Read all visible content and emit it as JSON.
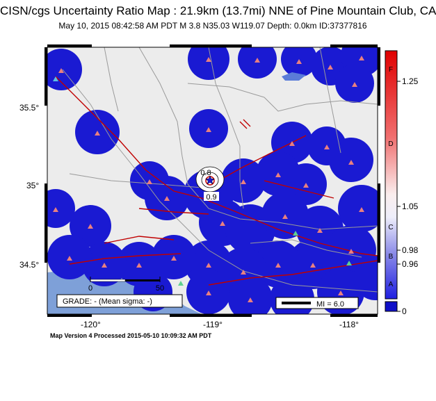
{
  "title": "CISN/cgs Uncertainty Ratio Map : 21.9km (13.7mi) NNE of Pine Mountain Club, CA",
  "subtitle": "May 10, 2015 08:42:58 AM PDT   M 3.8   N35.03 W119.07   Depth: 0.0km   ID:37377816",
  "footer": "Map Version 4 Processed 2015-05-10 10:09:32 AM PDT",
  "grade_box": "GRADE: - (Mean sigma: -)",
  "mi_box": "MI = 6.0",
  "scalebar": {
    "left": "0",
    "right": "50"
  },
  "contour_labels": [
    "0.8",
    "0.9"
  ],
  "lat_labels": [
    "35.5°",
    "35°",
    "34.5°"
  ],
  "lon_labels": [
    "-120°",
    "-119°",
    "-118°"
  ],
  "colorbar": {
    "numbers": [
      "1.25",
      "1.05",
      "0.98",
      "0.96",
      "0"
    ],
    "letters": [
      "F",
      "D",
      "C",
      "B",
      "A"
    ]
  },
  "colors": {
    "coverage": "#1a1ad2",
    "background": "#ececec",
    "ocean": "#7ea0d8",
    "faults": "#c00000",
    "roads": "#9a9a9a",
    "stations": "#e88080",
    "stations_alt": "#60d090"
  },
  "icons": [
    "epicenter-star-icon",
    "station-triangle-icon",
    "north-arrow"
  ]
}
